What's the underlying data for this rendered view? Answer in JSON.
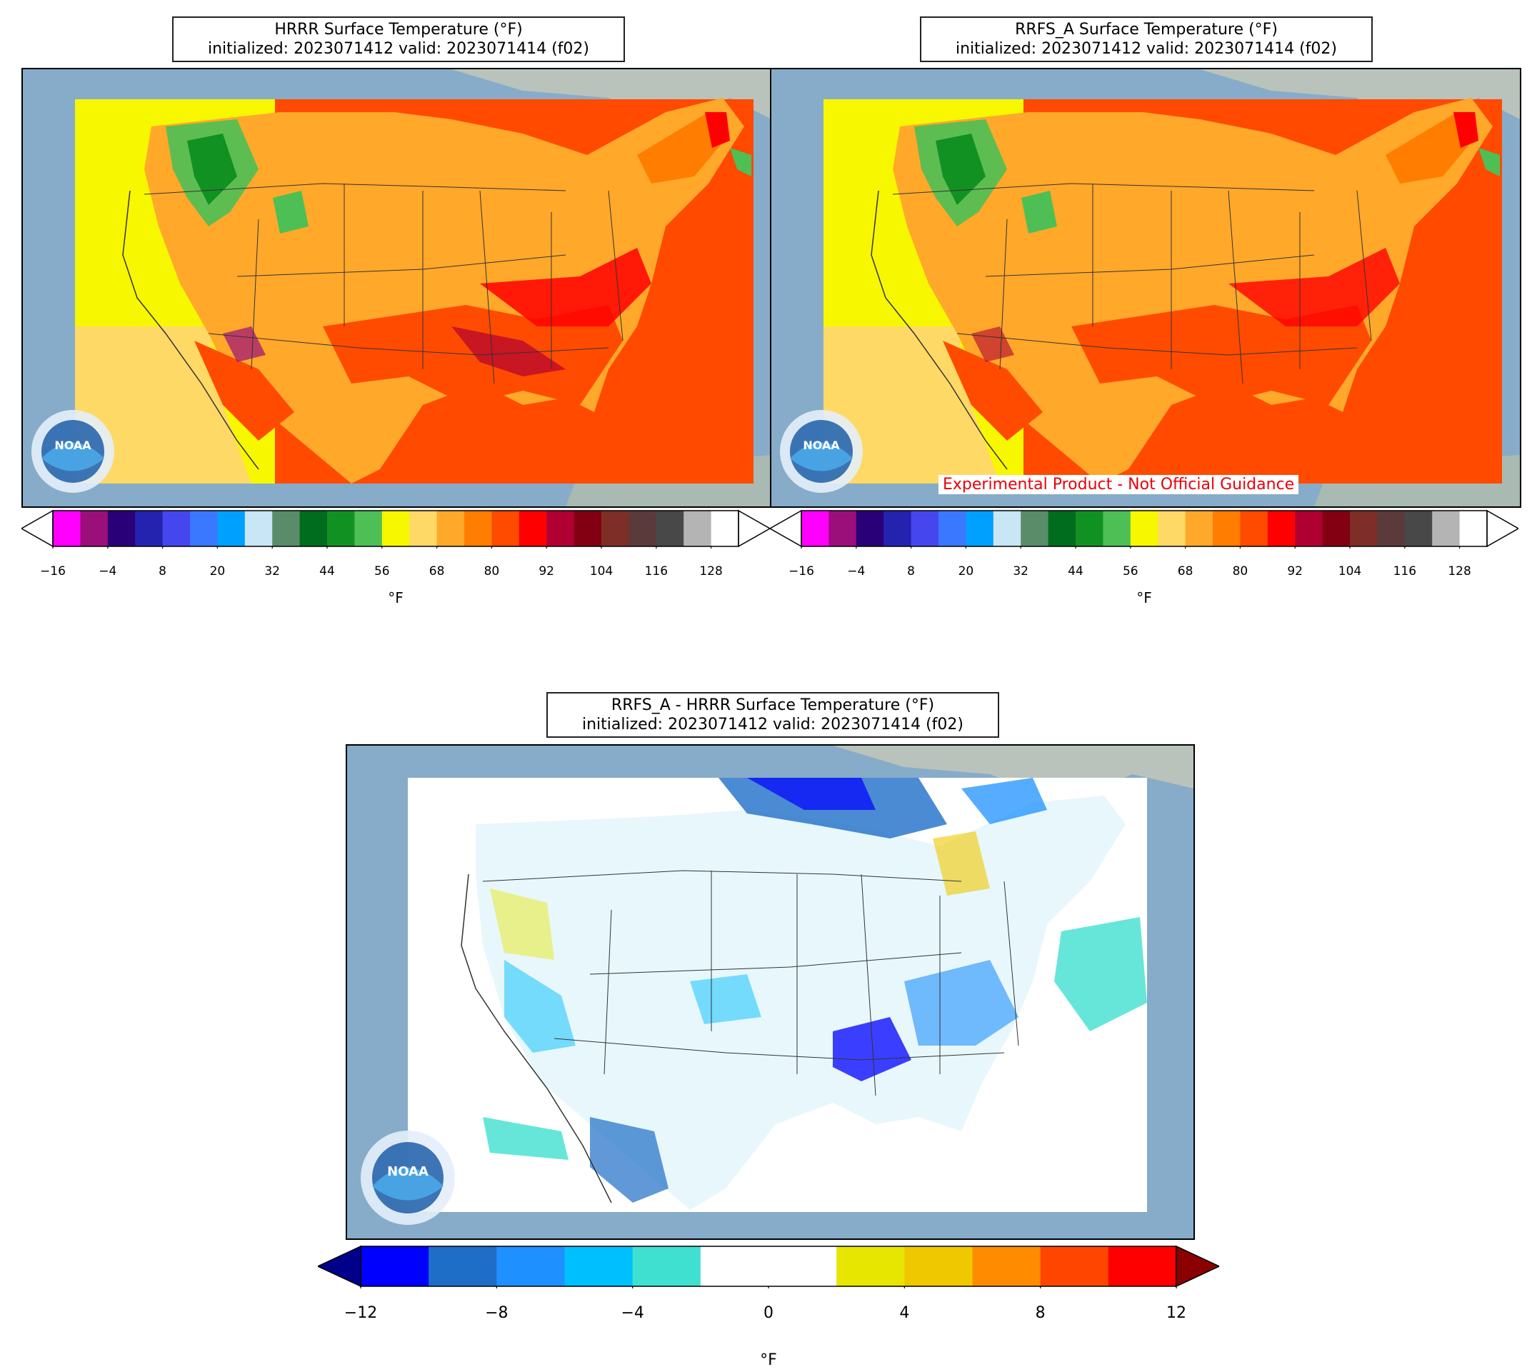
{
  "panels": {
    "hrrr": {
      "title_line1": "HRRR Surface Temperature (°F)",
      "title_line2": "initialized: 2023071412 valid: 2023071414 (f02)"
    },
    "rrfs": {
      "title_line1": "RRFS_A Surface Temperature (°F)",
      "title_line2": "initialized: 2023071412 valid: 2023071414 (f02)",
      "disclaimer": "Experimental Product - Not Official Guidance"
    },
    "diff": {
      "title_line1": "RRFS_A - HRRR Surface Temperature (°F)",
      "title_line2": "initialized: 2023071412 valid: 2023071414 (f02)"
    }
  },
  "logo": {
    "text": "NOAA",
    "icon": "noaa-logo-icon"
  },
  "temp_colorbar": {
    "unit": "°F",
    "ticks": [
      "−16",
      "−4",
      "8",
      "20",
      "32",
      "44",
      "56",
      "68",
      "80",
      "92",
      "104",
      "116",
      "128"
    ],
    "colors": [
      "#ff00ff",
      "#9b0f7a",
      "#2a0078",
      "#2323b0",
      "#4646ee",
      "#3a78ff",
      "#00a0ff",
      "#c8e6f5",
      "#5a8c69",
      "#006c1e",
      "#129123",
      "#4dbf55",
      "#f7f700",
      "#ffd966",
      "#ffa82a",
      "#ff7d00",
      "#ff4b00",
      "#ff0000",
      "#b00032",
      "#820012",
      "#7e2e26",
      "#5a3a3a",
      "#484848",
      "#b4b4b4",
      "#ffffff"
    ]
  },
  "diff_colorbar": {
    "unit": "°F",
    "ticks": [
      "−12",
      "−8",
      "−4",
      "0",
      "4",
      "8",
      "12"
    ],
    "colors": [
      "#0000ff",
      "#1e6ec8",
      "#1e90ff",
      "#00bfff",
      "#40e0d0",
      "#ffffff",
      "#ffffff",
      "#e6e600",
      "#f0c800",
      "#ff8c00",
      "#ff4500",
      "#ff0000"
    ],
    "under_color": "#00008b",
    "over_color": "#8b0000"
  }
}
